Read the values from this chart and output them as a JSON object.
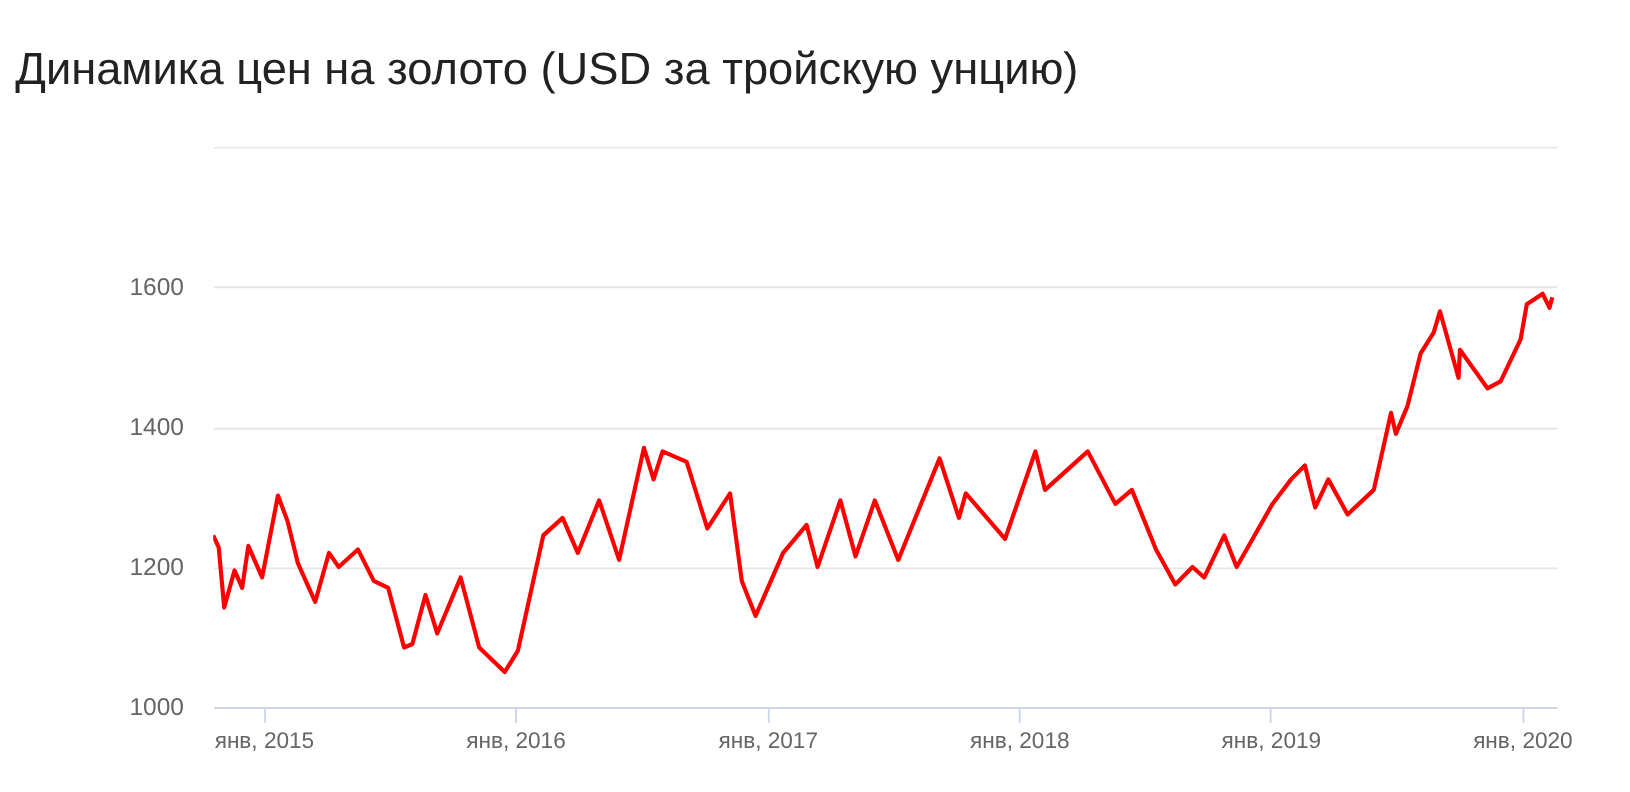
{
  "chart_data": {
    "type": "line",
    "title": "Динамика цен на золото (USD за тройскую унцию)",
    "x": [
      "2014-10-20",
      "2014-10-28",
      "2014-11-05",
      "2014-11-20",
      "2014-12-01",
      "2014-12-10",
      "2014-12-30",
      "2015-01-22",
      "2015-02-05",
      "2015-02-20",
      "2015-03-17",
      "2015-04-06",
      "2015-04-20",
      "2015-05-18",
      "2015-06-10",
      "2015-07-01",
      "2015-07-24",
      "2015-08-05",
      "2015-08-24",
      "2015-09-10",
      "2015-10-14",
      "2015-11-10",
      "2015-12-17",
      "2016-01-05",
      "2016-02-11",
      "2016-03-10",
      "2016-04-01",
      "2016-05-02",
      "2016-05-31",
      "2016-07-06",
      "2016-07-20",
      "2016-08-02",
      "2016-09-06",
      "2016-10-06",
      "2016-11-08",
      "2016-11-25",
      "2016-12-15",
      "2017-01-24",
      "2017-02-27",
      "2017-03-15",
      "2017-04-17",
      "2017-05-09",
      "2017-06-06",
      "2017-07-10",
      "2017-09-08",
      "2017-10-06",
      "2017-10-16",
      "2017-12-12",
      "2018-01-25",
      "2018-02-08",
      "2018-04-11",
      "2018-05-21",
      "2018-06-14",
      "2018-07-19",
      "2018-08-16",
      "2018-09-10",
      "2018-09-27",
      "2018-10-26",
      "2018-11-13",
      "2019-01-04",
      "2019-01-31",
      "2019-02-20",
      "2019-03-07",
      "2019-03-26",
      "2019-04-23",
      "2019-05-31",
      "2019-06-25",
      "2019-07-02",
      "2019-07-19",
      "2019-08-07",
      "2019-08-26",
      "2019-09-04",
      "2019-10-01",
      "2019-10-03",
      "2019-11-12",
      "2019-12-01",
      "2019-12-30",
      "2020-01-08",
      "2020-01-31",
      "2020-02-10",
      "2020-02-14"
    ],
    "series": [
      {
        "color": "#ff0000",
        "values": [
          1245,
          1228,
          1142,
          1195,
          1170,
          1230,
          1185,
          1302,
          1265,
          1205,
          1150,
          1220,
          1200,
          1225,
          1180,
          1170,
          1085,
          1090,
          1160,
          1105,
          1185,
          1085,
          1050,
          1080,
          1245,
          1270,
          1220,
          1295,
          1210,
          1370,
          1325,
          1365,
          1350,
          1255,
          1305,
          1180,
          1130,
          1220,
          1260,
          1200,
          1295,
          1215,
          1295,
          1210,
          1355,
          1270,
          1305,
          1240,
          1365,
          1310,
          1365,
          1290,
          1310,
          1225,
          1175,
          1200,
          1185,
          1245,
          1200,
          1290,
          1325,
          1345,
          1285,
          1325,
          1275,
          1310,
          1420,
          1390,
          1430,
          1505,
          1535,
          1565,
          1470,
          1510,
          1455,
          1465,
          1525,
          1575,
          1590,
          1570,
          1585
        ]
      }
    ],
    "xlim": [
      "2014-10-20",
      "2020-02-20"
    ],
    "xticks": [
      {
        "value": "2015-01-01",
        "label": "янв, 2015"
      },
      {
        "value": "2016-01-01",
        "label": "янв, 2016"
      },
      {
        "value": "2017-01-01",
        "label": "янв, 2017"
      },
      {
        "value": "2018-01-01",
        "label": "янв, 2018"
      },
      {
        "value": "2019-01-01",
        "label": "янв, 2019"
      },
      {
        "value": "2020-01-01",
        "label": "янв, 2020"
      }
    ],
    "ylim": [
      1000,
      1800
    ],
    "yticks": [
      1000,
      1200,
      1400,
      1600,
      {
        "value": 1800,
        "label": null
      }
    ],
    "grid": "y",
    "legend": false,
    "marker": "none",
    "line_style": "solid"
  }
}
